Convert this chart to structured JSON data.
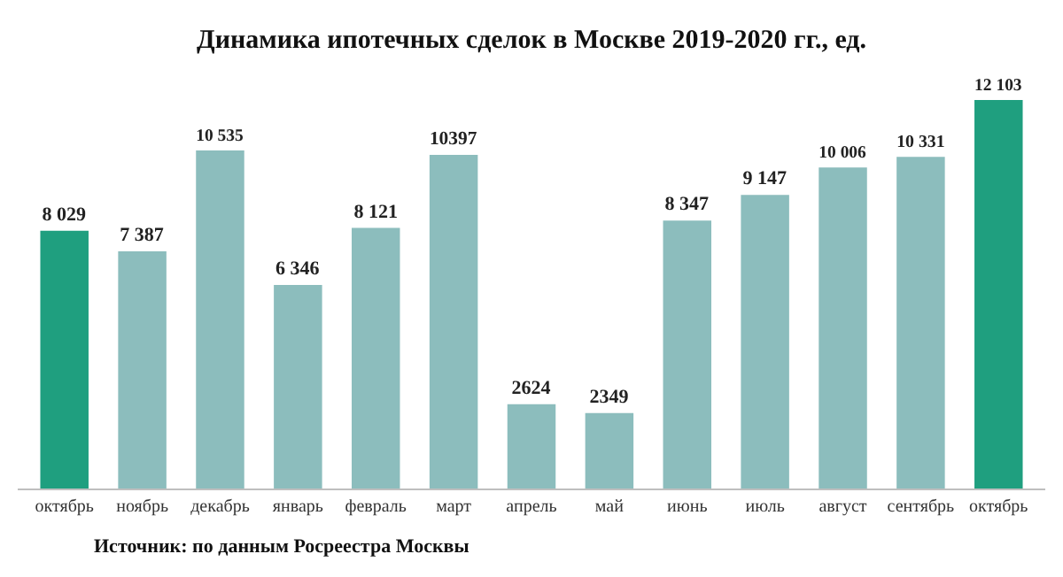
{
  "chart_data": {
    "type": "bar",
    "title": "Динамика ипотечных сделок в Москве 2019-2020 гг., ед.",
    "categories": [
      "октябрь",
      "ноябрь",
      "декабрь",
      "январь",
      "февраль",
      "март",
      "апрель",
      "май",
      "июнь",
      "июль",
      "август",
      "сентябрь",
      "октябрь"
    ],
    "values": [
      8029,
      7387,
      10535,
      6346,
      8121,
      10397,
      2624,
      2349,
      8347,
      9147,
      10006,
      10331,
      12103
    ],
    "value_labels": [
      "8 029",
      "7 387",
      "10 535",
      "6 346",
      "8 121",
      "10397",
      "2624",
      "2349",
      "8 347",
      "9 147",
      "10 006",
      "10 331",
      "12 103"
    ],
    "colors": [
      "#1f9f7f",
      "#8cbdbd",
      "#8cbdbd",
      "#8cbdbd",
      "#8cbdbd",
      "#8cbdbd",
      "#8cbdbd",
      "#8cbdbd",
      "#8cbdbd",
      "#8cbdbd",
      "#8cbdbd",
      "#8cbdbd",
      "#1f9f7f"
    ],
    "annotations": [
      "Источник: по данным Росреестра Москвы"
    ],
    "legend": false
  }
}
